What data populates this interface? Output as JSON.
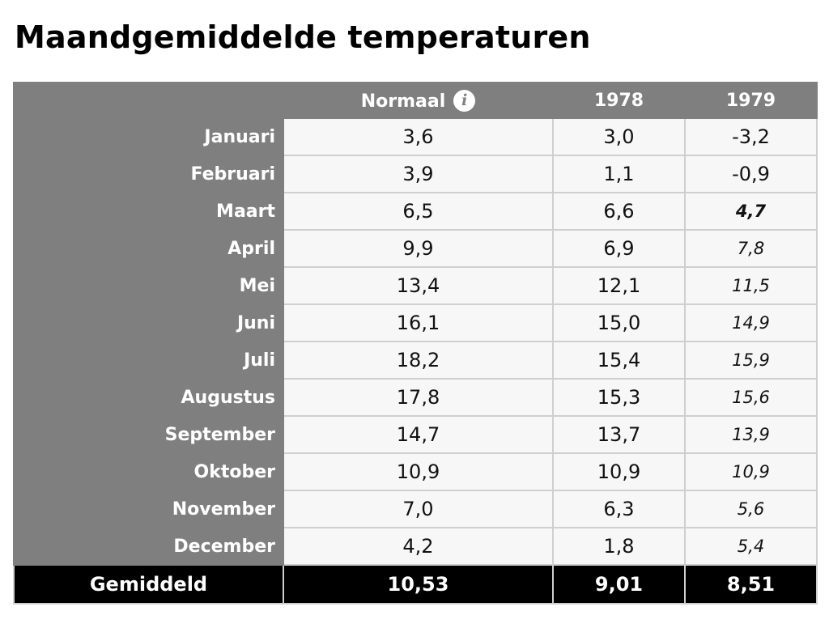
{
  "title": "Maandgemiddelde temperaturen",
  "header": {
    "normaal": "Normaal",
    "info_icon": "info-icon",
    "year1": "1978",
    "year2": "1979"
  },
  "rows": [
    {
      "month": "Januari",
      "normaal": "3,6",
      "y1978": "3,0",
      "y1979": "-3,2"
    },
    {
      "month": "Februari",
      "normaal": "3,9",
      "y1978": "1,1",
      "y1979": "-0,9"
    },
    {
      "month": "Maart",
      "normaal": "6,5",
      "y1978": "6,6",
      "y1979": "4,7"
    },
    {
      "month": "April",
      "normaal": "9,9",
      "y1978": "6,9",
      "y1979": "7,8"
    },
    {
      "month": "Mei",
      "normaal": "13,4",
      "y1978": "12,1",
      "y1979": "11,5"
    },
    {
      "month": "Juni",
      "normaal": "16,1",
      "y1978": "15,0",
      "y1979": "14,9"
    },
    {
      "month": "Juli",
      "normaal": "18,2",
      "y1978": "15,4",
      "y1979": "15,9"
    },
    {
      "month": "Augustus",
      "normaal": "17,8",
      "y1978": "15,3",
      "y1979": "15,6"
    },
    {
      "month": "September",
      "normaal": "14,7",
      "y1978": "13,7",
      "y1979": "13,9"
    },
    {
      "month": "Oktober",
      "normaal": "10,9",
      "y1978": "10,9",
      "y1979": "10,9"
    },
    {
      "month": "November",
      "normaal": "7,0",
      "y1978": "6,3",
      "y1979": "5,6"
    },
    {
      "month": "December",
      "normaal": "4,2",
      "y1978": "1,8",
      "y1979": "5,4"
    }
  ],
  "footer": {
    "label": "Gemiddeld",
    "normaal": "10,53",
    "y1978": "9,01",
    "y1979": "8,51"
  },
  "colors": {
    "header_bg": "#7f7f7f",
    "cell_bg": "#f7f7f7",
    "footer_bg": "#000000",
    "grid": "#cfcfcf"
  }
}
